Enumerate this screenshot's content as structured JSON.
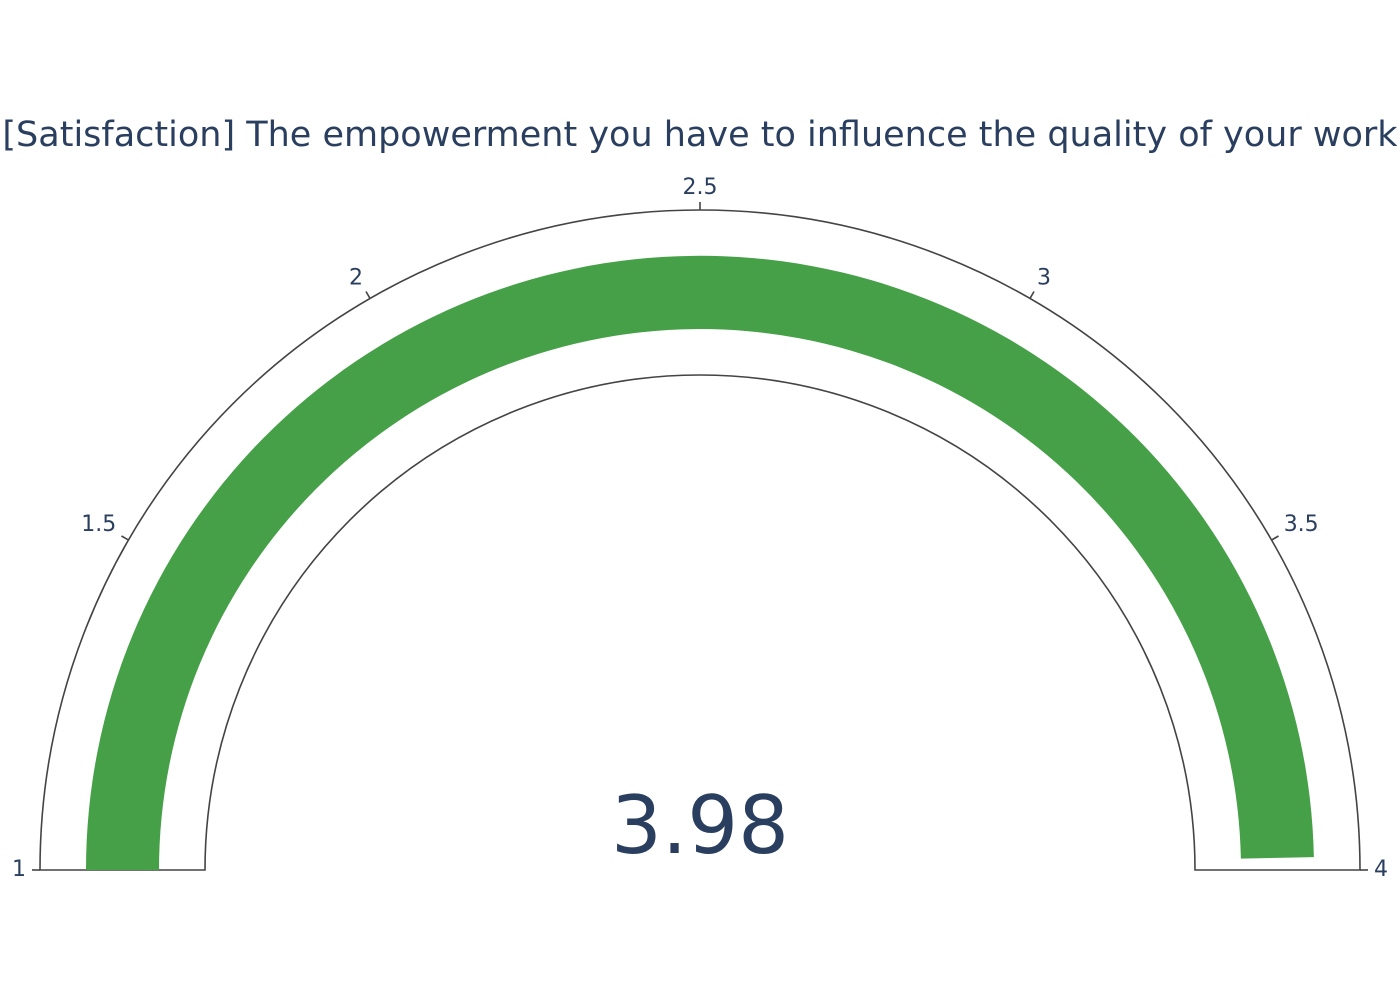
{
  "chart_data": {
    "type": "gauge",
    "title": "[Satisfaction] The empowerment you have to influence the quality of your work",
    "value": 3.98,
    "value_label": "3.98",
    "range": [
      1,
      4
    ],
    "ticks": [
      1,
      1.5,
      2,
      2.5,
      3,
      3.5,
      4
    ],
    "tick_labels": [
      "1",
      "1.5",
      "2",
      "2.5",
      "3",
      "3.5",
      "4"
    ],
    "bar_color": "#45a047",
    "background_color": "#ffffff",
    "border_color": "#444444",
    "text_color": "#2a3f5f"
  }
}
